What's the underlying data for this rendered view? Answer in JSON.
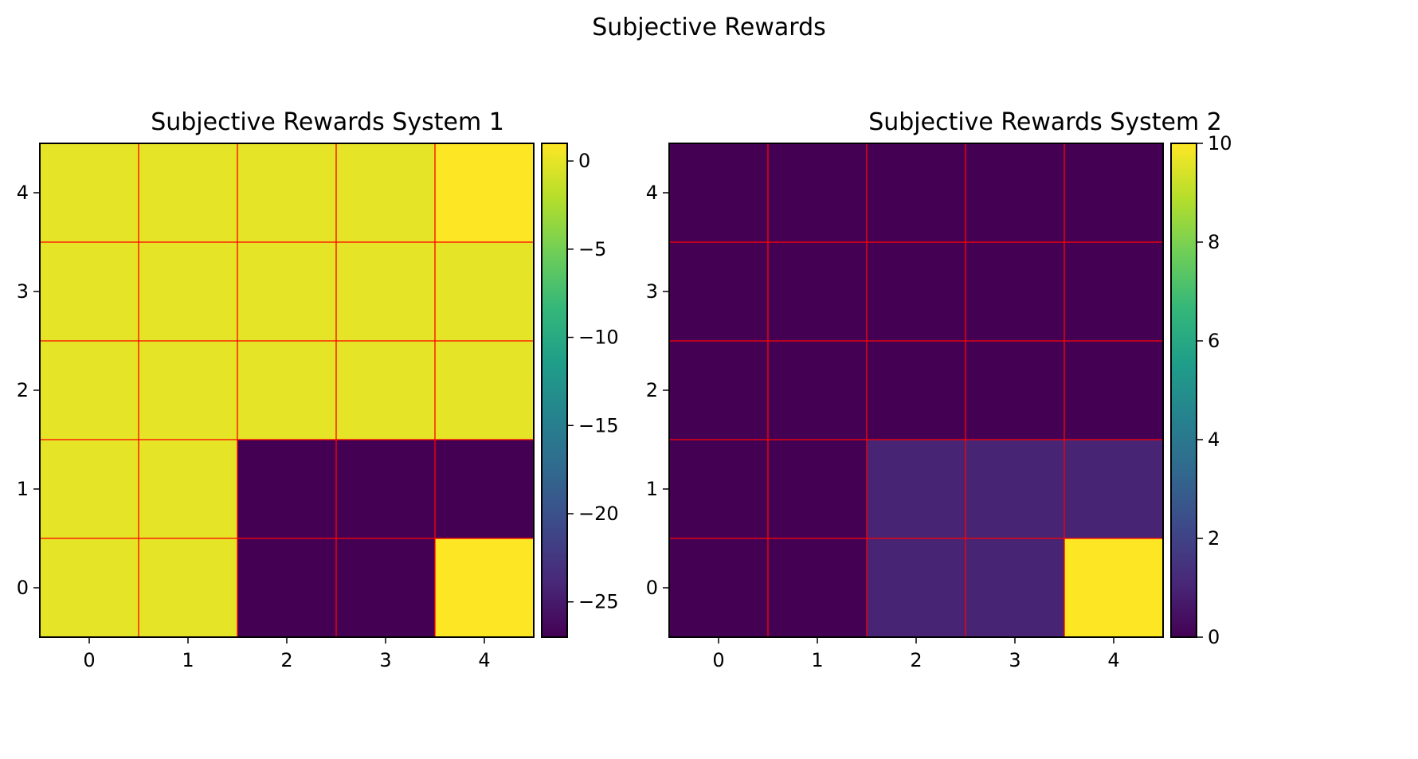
{
  "figure": {
    "suptitle": "Subjective Rewards"
  },
  "colors": {
    "grid": "#ff0000",
    "frame": "#000000",
    "viridis": [
      "#440154",
      "#482878",
      "#3e4989",
      "#31688e",
      "#26828e",
      "#1f9e89",
      "#35b779",
      "#6ece58",
      "#b5de2b",
      "#fde725"
    ]
  },
  "chart_data": [
    {
      "type": "heatmap",
      "title": "Subjective Rewards System 1",
      "xlabel": "",
      "ylabel": "",
      "x_ticks": [
        0,
        1,
        2,
        3,
        4
      ],
      "y_ticks": [
        0,
        1,
        2,
        3,
        4
      ],
      "origin": "lower",
      "grid": true,
      "colormap": "viridis",
      "vmin": -27,
      "vmax": 1,
      "colorbar_ticks": [
        0,
        -5,
        -10,
        -15,
        -20,
        -25
      ],
      "values": [
        [
          0,
          0,
          -27,
          -27,
          1
        ],
        [
          0,
          0,
          -27,
          -27,
          -27
        ],
        [
          0,
          0,
          0,
          0,
          0
        ],
        [
          0,
          0,
          0,
          0,
          0
        ],
        [
          0,
          0,
          0,
          0,
          1
        ]
      ]
    },
    {
      "type": "heatmap",
      "title": "Subjective Rewards System 2",
      "xlabel": "",
      "ylabel": "",
      "x_ticks": [
        0,
        1,
        2,
        3,
        4
      ],
      "y_ticks": [
        0,
        1,
        2,
        3,
        4
      ],
      "origin": "lower",
      "grid": true,
      "colormap": "viridis",
      "vmin": 0,
      "vmax": 10,
      "colorbar_ticks": [
        0,
        2,
        4,
        6,
        8,
        10
      ],
      "values": [
        [
          0,
          0,
          1,
          1,
          10
        ],
        [
          0,
          0,
          1,
          1,
          1
        ],
        [
          0,
          0,
          0,
          0,
          0
        ],
        [
          0,
          0,
          0,
          0,
          0
        ],
        [
          0,
          0,
          0,
          0,
          0
        ]
      ]
    }
  ]
}
